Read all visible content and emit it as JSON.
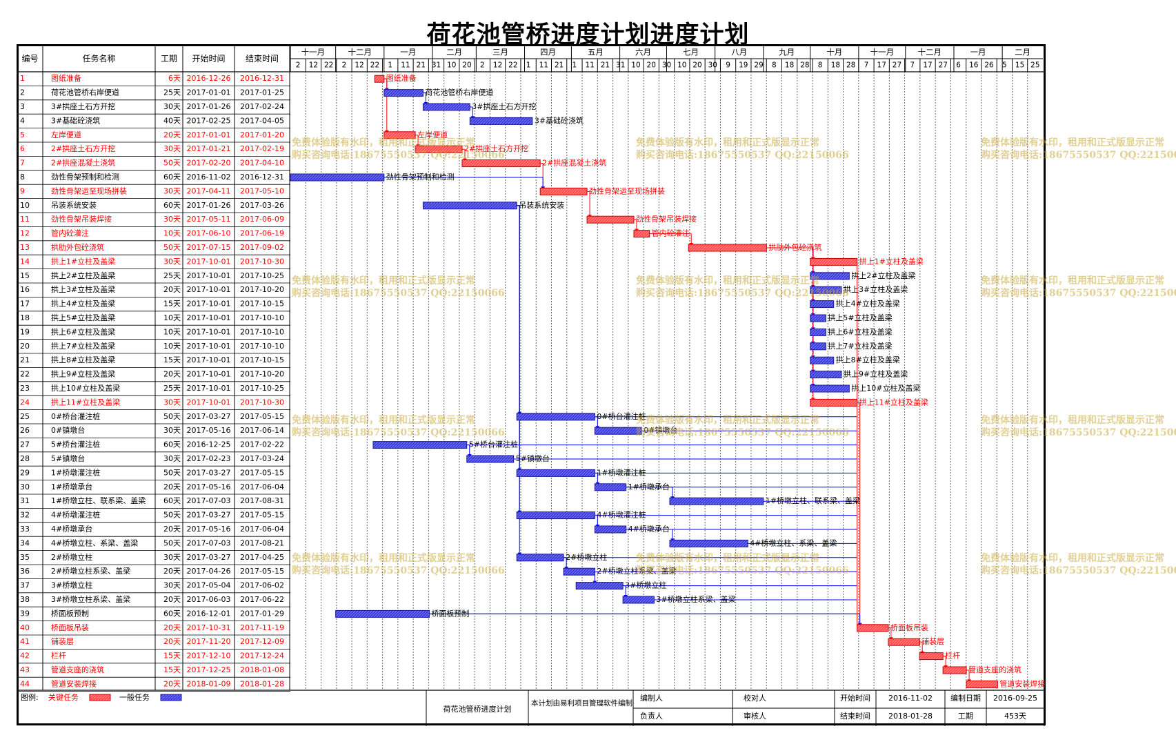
{
  "title": "荷花池管桥进度计划进度计划",
  "colors": {
    "critical": "#ff4c4c",
    "normal": "#3b3bdc",
    "critical_text": "#ff0000",
    "normal_text": "#000000",
    "link_normal": "#0000ff",
    "link_critical": "#ff0000",
    "watermark": "#c8aa3c"
  },
  "table_headers": {
    "id": "编号",
    "name": "任务名称",
    "duration": "工期",
    "start": "开始时间",
    "end": "结束时间"
  },
  "timeline": {
    "months": [
      "十一月",
      "十二月",
      "一月",
      "二月",
      "三月",
      "四月",
      "五月",
      "六月",
      "七月",
      "八月",
      "九月",
      "十月",
      "十一月",
      "十二月",
      "一月",
      "二月"
    ],
    "ticks": [
      "2",
      "12",
      "22",
      "2",
      "12",
      "22",
      "1",
      "11",
      "21",
      "31",
      "10",
      "20",
      "2",
      "12",
      "22",
      "1",
      "11",
      "21",
      "1",
      "11",
      "21",
      "31",
      "10",
      "20",
      "30",
      "10",
      "20",
      "30",
      "9",
      "19",
      "29",
      "8",
      "18",
      "28",
      "8",
      "18",
      "28",
      "7",
      "17",
      "27",
      "7",
      "17",
      "27",
      "6",
      "16",
      "26",
      "5",
      "15",
      "25"
    ]
  },
  "chart_data": {
    "type": "gantt",
    "x_range": [
      "2016-11-02",
      "2018-02-27"
    ],
    "tasks": [
      {
        "id": "1",
        "name": "图纸准备",
        "duration": "6天",
        "start": "2016-12-26",
        "end": "2016-12-31",
        "critical": true
      },
      {
        "id": "2",
        "name": "荷花池管桥右岸便道",
        "duration": "25天",
        "start": "2017-01-01",
        "end": "2017-01-25",
        "critical": false
      },
      {
        "id": "3",
        "name": "3#拱座土石方开挖",
        "duration": "30天",
        "start": "2017-01-26",
        "end": "2017-02-24",
        "critical": false
      },
      {
        "id": "4",
        "name": "3#基础砼浇筑",
        "duration": "40天",
        "start": "2017-02-25",
        "end": "2017-04-05",
        "critical": false
      },
      {
        "id": "5",
        "name": "左岸便道",
        "duration": "20天",
        "start": "2017-01-01",
        "end": "2017-01-20",
        "critical": true
      },
      {
        "id": "6",
        "name": "2#拱座土石方开挖",
        "duration": "30天",
        "start": "2017-01-21",
        "end": "2017-02-19",
        "critical": true
      },
      {
        "id": "7",
        "name": "2#拱座混凝土浇筑",
        "duration": "50天",
        "start": "2017-02-20",
        "end": "2017-04-10",
        "critical": true
      },
      {
        "id": "8",
        "name": "劲性骨架预制和检测",
        "duration": "60天",
        "start": "2016-11-02",
        "end": "2016-12-31",
        "critical": false
      },
      {
        "id": "9",
        "name": "劲性骨架运至现场拼装",
        "duration": "30天",
        "start": "2017-04-11",
        "end": "2017-05-10",
        "critical": true
      },
      {
        "id": "10",
        "name": "吊装系统安装",
        "duration": "60天",
        "start": "2017-01-26",
        "end": "2017-03-26",
        "critical": false
      },
      {
        "id": "11",
        "name": "劲性骨架吊装焊接",
        "duration": "30天",
        "start": "2017-05-11",
        "end": "2017-06-09",
        "critical": true
      },
      {
        "id": "12",
        "name": "管内砼灌注",
        "duration": "10天",
        "start": "2017-06-10",
        "end": "2017-06-19",
        "critical": true
      },
      {
        "id": "13",
        "name": "拱肋外包砼浇筑",
        "duration": "50天",
        "start": "2017-07-15",
        "end": "2017-09-02",
        "critical": true
      },
      {
        "id": "14",
        "name": "拱上1#立柱及盖梁",
        "duration": "30天",
        "start": "2017-10-01",
        "end": "2017-10-30",
        "critical": true
      },
      {
        "id": "15",
        "name": "拱上2#立柱及盖梁",
        "duration": "25天",
        "start": "2017-10-01",
        "end": "2017-10-25",
        "critical": false
      },
      {
        "id": "16",
        "name": "拱上3#立柱及盖梁",
        "duration": "20天",
        "start": "2017-10-01",
        "end": "2017-10-20",
        "critical": false
      },
      {
        "id": "17",
        "name": "拱上4#立柱及盖梁",
        "duration": "15天",
        "start": "2017-10-01",
        "end": "2017-10-15",
        "critical": false
      },
      {
        "id": "18",
        "name": "拱上5#立柱及盖梁",
        "duration": "10天",
        "start": "2017-10-01",
        "end": "2017-10-10",
        "critical": false
      },
      {
        "id": "19",
        "name": "拱上6#立柱及盖梁",
        "duration": "10天",
        "start": "2017-10-01",
        "end": "2017-10-10",
        "critical": false
      },
      {
        "id": "20",
        "name": "拱上7#立柱及盖梁",
        "duration": "10天",
        "start": "2017-10-01",
        "end": "2017-10-10",
        "critical": false
      },
      {
        "id": "21",
        "name": "拱上8#立柱及盖梁",
        "duration": "15天",
        "start": "2017-10-01",
        "end": "2017-10-15",
        "critical": false
      },
      {
        "id": "22",
        "name": "拱上9#立柱及盖梁",
        "duration": "20天",
        "start": "2017-10-01",
        "end": "2017-10-20",
        "critical": false
      },
      {
        "id": "23",
        "name": "拱上10#立柱及盖梁",
        "duration": "25天",
        "start": "2017-10-01",
        "end": "2017-10-25",
        "critical": false
      },
      {
        "id": "24",
        "name": "拱上11#立柱及盖梁",
        "duration": "30天",
        "start": "2017-10-01",
        "end": "2017-10-30",
        "critical": true
      },
      {
        "id": "25",
        "name": "0#桥台灌注桩",
        "duration": "50天",
        "start": "2017-03-27",
        "end": "2017-05-15",
        "critical": false
      },
      {
        "id": "26",
        "name": "0#镇墩台",
        "duration": "30天",
        "start": "2017-05-16",
        "end": "2017-06-14",
        "critical": false
      },
      {
        "id": "27",
        "name": "5#桥台灌注桩",
        "duration": "60天",
        "start": "2016-12-25",
        "end": "2017-02-22",
        "critical": false
      },
      {
        "id": "28",
        "name": "5#镇墩台",
        "duration": "30天",
        "start": "2017-02-23",
        "end": "2017-03-24",
        "critical": false
      },
      {
        "id": "29",
        "name": "1#桥墩灌注桩",
        "duration": "50天",
        "start": "2017-03-27",
        "end": "2017-05-15",
        "critical": false
      },
      {
        "id": "30",
        "name": "1#桥墩承台",
        "duration": "20天",
        "start": "2017-05-16",
        "end": "2017-06-04",
        "critical": false
      },
      {
        "id": "31",
        "name": "1#桥墩立柱、联系梁、盖梁",
        "duration": "60天",
        "start": "2017-07-03",
        "end": "2017-08-31",
        "critical": false
      },
      {
        "id": "32",
        "name": "4#桥墩灌注桩",
        "duration": "50天",
        "start": "2017-03-27",
        "end": "2017-05-15",
        "critical": false
      },
      {
        "id": "33",
        "name": "4#桥墩承台",
        "duration": "20天",
        "start": "2017-05-16",
        "end": "2017-06-04",
        "critical": false
      },
      {
        "id": "34",
        "name": "4#桥墩立柱、系梁、盖梁",
        "duration": "50天",
        "start": "2017-07-03",
        "end": "2017-08-21",
        "critical": false
      },
      {
        "id": "35",
        "name": "2#桥墩立柱",
        "duration": "30天",
        "start": "2017-03-27",
        "end": "2017-04-25",
        "critical": false
      },
      {
        "id": "36",
        "name": "2#桥墩立柱系梁、盖梁",
        "duration": "20天",
        "start": "2017-04-26",
        "end": "2017-05-15",
        "critical": false
      },
      {
        "id": "37",
        "name": "3#桥墩立柱",
        "duration": "30天",
        "start": "2017-05-04",
        "end": "2017-06-02",
        "critical": false
      },
      {
        "id": "38",
        "name": "3#桥墩立柱系梁、盖梁",
        "duration": "20天",
        "start": "2017-06-03",
        "end": "2017-06-22",
        "critical": false
      },
      {
        "id": "39",
        "name": "桥面板预制",
        "duration": "60天",
        "start": "2016-12-01",
        "end": "2017-01-29",
        "critical": false
      },
      {
        "id": "40",
        "name": "桥面板吊装",
        "duration": "20天",
        "start": "2017-10-31",
        "end": "2017-11-19",
        "critical": true
      },
      {
        "id": "41",
        "name": "铺装层",
        "duration": "20天",
        "start": "2017-11-20",
        "end": "2017-12-09",
        "critical": true
      },
      {
        "id": "42",
        "name": "栏杆",
        "duration": "15天",
        "start": "2017-12-10",
        "end": "2017-12-24",
        "critical": true
      },
      {
        "id": "43",
        "name": "管道支座的浇筑",
        "duration": "15天",
        "start": "2017-12-25",
        "end": "2018-01-08",
        "critical": true
      },
      {
        "id": "44",
        "name": "管道安装焊接",
        "duration": "20天",
        "start": "2018-01-09",
        "end": "2018-01-28",
        "critical": true
      }
    ]
  },
  "legend": {
    "label": "图例:",
    "critical_label": "关键任务",
    "normal_label": "一般任务"
  },
  "footer": {
    "plan_name": "荷花池管桥进度计划",
    "software_note": "本计划由易利项目管理软件编制",
    "prepared_by_label": "编制人",
    "checker_label": "校对人",
    "responsible_label": "负责人",
    "reviewer_label": "审核人",
    "start_label": "开始时间",
    "start_value": "2016-11-02",
    "end_label": "结束时间",
    "end_value": "2018-01-28",
    "prep_date_label": "编制日期",
    "prep_date_value": "2016-09-25",
    "duration_label": "工期",
    "duration_value": "453天"
  },
  "watermark": {
    "line1": "免费体验版有水印，租用和正式版显示正常",
    "line2": "购买咨询电话:18675550537 QQ:22150066"
  }
}
